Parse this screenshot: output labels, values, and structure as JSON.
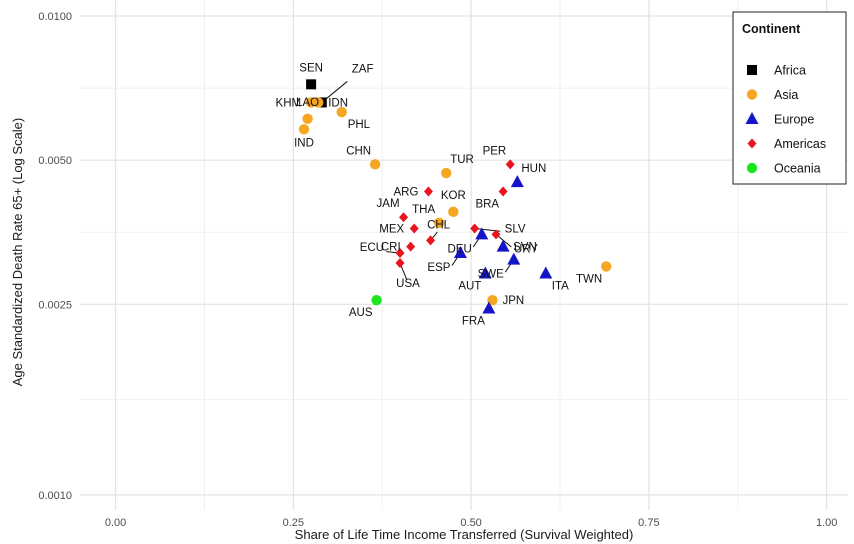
{
  "chart_data": {
    "type": "scatter",
    "xlabel": "Share of Life Time Income Transferred (Survival Weighted)",
    "ylabel": "Age Standardized Death Rate 65+ (Log Scale)",
    "xlim": [
      -0.05,
      1.03
    ],
    "ylim": [
      0.00093,
      0.0108
    ],
    "y_scale": "log",
    "x_ticks": [
      0.0,
      0.25,
      0.5,
      0.75,
      1.0
    ],
    "x_tick_labels": [
      "0.00",
      "0.25",
      "0.50",
      "0.75",
      "1.00"
    ],
    "y_ticks": [
      0.001,
      0.0025,
      0.005,
      0.01
    ],
    "y_tick_labels": [
      "0.0010",
      "0.0025",
      "0.0050",
      "0.0100"
    ],
    "grid": true,
    "legend": {
      "title": "Continent",
      "placement": "top-right",
      "entries": [
        {
          "name": "Africa",
          "color": "#000000",
          "shape": "square"
        },
        {
          "name": "Asia",
          "color": "#f5a623",
          "shape": "circle"
        },
        {
          "name": "Europe",
          "color": "#1414c8",
          "shape": "triangle"
        },
        {
          "name": "Americas",
          "color": "#e8141e",
          "shape": "diamond"
        },
        {
          "name": "Oceania",
          "color": "#1ee61e",
          "shape": "circle"
        }
      ]
    },
    "points": [
      {
        "code": "SEN",
        "continent": "Africa",
        "x": 0.275,
        "y": 0.0072,
        "label_pos": "above"
      },
      {
        "code": "ZAF",
        "continent": "Africa",
        "x": 0.29,
        "y": 0.0066,
        "label_pos": "leader-upper-right"
      },
      {
        "code": "KHM",
        "continent": "Asia",
        "x": 0.275,
        "y": 0.0066,
        "label_pos": "left"
      },
      {
        "code": "IDN",
        "continent": "Asia",
        "x": 0.285,
        "y": 0.0066,
        "label_pos": "right"
      },
      {
        "code": "LAO",
        "continent": "Asia",
        "x": 0.27,
        "y": 0.0061,
        "label_pos": "above"
      },
      {
        "code": "IND",
        "continent": "Asia",
        "x": 0.265,
        "y": 0.0058,
        "label_pos": "below"
      },
      {
        "code": "PHL",
        "continent": "Asia",
        "x": 0.318,
        "y": 0.0063,
        "label_pos": "below-right"
      },
      {
        "code": "CHN",
        "continent": "Asia",
        "x": 0.365,
        "y": 0.0049,
        "label_pos": "above-left"
      },
      {
        "code": "TUR",
        "continent": "Asia",
        "x": 0.465,
        "y": 0.0047,
        "label_pos": "above-right"
      },
      {
        "code": "KOR",
        "continent": "Asia",
        "x": 0.475,
        "y": 0.0039,
        "label_pos": "above"
      },
      {
        "code": "THA",
        "continent": "Asia",
        "x": 0.455,
        "y": 0.0037,
        "label_pos": "above-left"
      },
      {
        "code": "JPN",
        "continent": "Asia",
        "x": 0.53,
        "y": 0.00255,
        "label_pos": "right"
      },
      {
        "code": "TWN",
        "continent": "Asia",
        "x": 0.69,
        "y": 0.003,
        "label_pos": "below-left"
      },
      {
        "code": "ARG",
        "continent": "Americas",
        "x": 0.44,
        "y": 0.0043,
        "label_pos": "left"
      },
      {
        "code": "PER",
        "continent": "Americas",
        "x": 0.555,
        "y": 0.0049,
        "label_pos": "above-left"
      },
      {
        "code": "BRA",
        "continent": "Americas",
        "x": 0.545,
        "y": 0.0043,
        "label_pos": "below-left"
      },
      {
        "code": "JAM",
        "continent": "Americas",
        "x": 0.405,
        "y": 0.0038,
        "label_pos": "above-left"
      },
      {
        "code": "MEX",
        "continent": "Americas",
        "x": 0.42,
        "y": 0.0036,
        "label_pos": "left"
      },
      {
        "code": "CHL",
        "continent": "Americas",
        "x": 0.443,
        "y": 0.0034,
        "label_pos": "leader-above-right"
      },
      {
        "code": "CRI",
        "continent": "Americas",
        "x": 0.415,
        "y": 0.0033,
        "label_pos": "left"
      },
      {
        "code": "ECU",
        "continent": "Americas",
        "x": 0.4,
        "y": 0.0032,
        "label_pos": "leader-left"
      },
      {
        "code": "USA",
        "continent": "Americas",
        "x": 0.4,
        "y": 0.00305,
        "label_pos": "leader-below"
      },
      {
        "code": "SLV",
        "continent": "Americas",
        "x": 0.505,
        "y": 0.0036,
        "label_pos": "leader-right"
      },
      {
        "code": "URY",
        "continent": "Americas",
        "x": 0.535,
        "y": 0.0035,
        "label_pos": "leader-below-right"
      },
      {
        "code": "HUN",
        "continent": "Europe",
        "x": 0.565,
        "y": 0.0045,
        "label_pos": "above-right"
      },
      {
        "code": "DEU",
        "continent": "Europe",
        "x": 0.515,
        "y": 0.0035,
        "label_pos": "leader-below-left"
      },
      {
        "code": "ESP",
        "continent": "Europe",
        "x": 0.485,
        "y": 0.0032,
        "label_pos": "leader-below-left"
      },
      {
        "code": "SVN",
        "continent": "Europe",
        "x": 0.545,
        "y": 0.0033,
        "label_pos": "right"
      },
      {
        "code": "SWE",
        "continent": "Europe",
        "x": 0.56,
        "y": 0.0031,
        "label_pos": "leader-below-left"
      },
      {
        "code": "AUT",
        "continent": "Europe",
        "x": 0.52,
        "y": 0.0029,
        "label_pos": "below-left"
      },
      {
        "code": "ITA",
        "continent": "Europe",
        "x": 0.605,
        "y": 0.0029,
        "label_pos": "below-right"
      },
      {
        "code": "FRA",
        "continent": "Europe",
        "x": 0.525,
        "y": 0.00245,
        "label_pos": "below-left"
      },
      {
        "code": "AUS",
        "continent": "Oceania",
        "x": 0.367,
        "y": 0.00255,
        "label_pos": "below-left"
      }
    ]
  }
}
